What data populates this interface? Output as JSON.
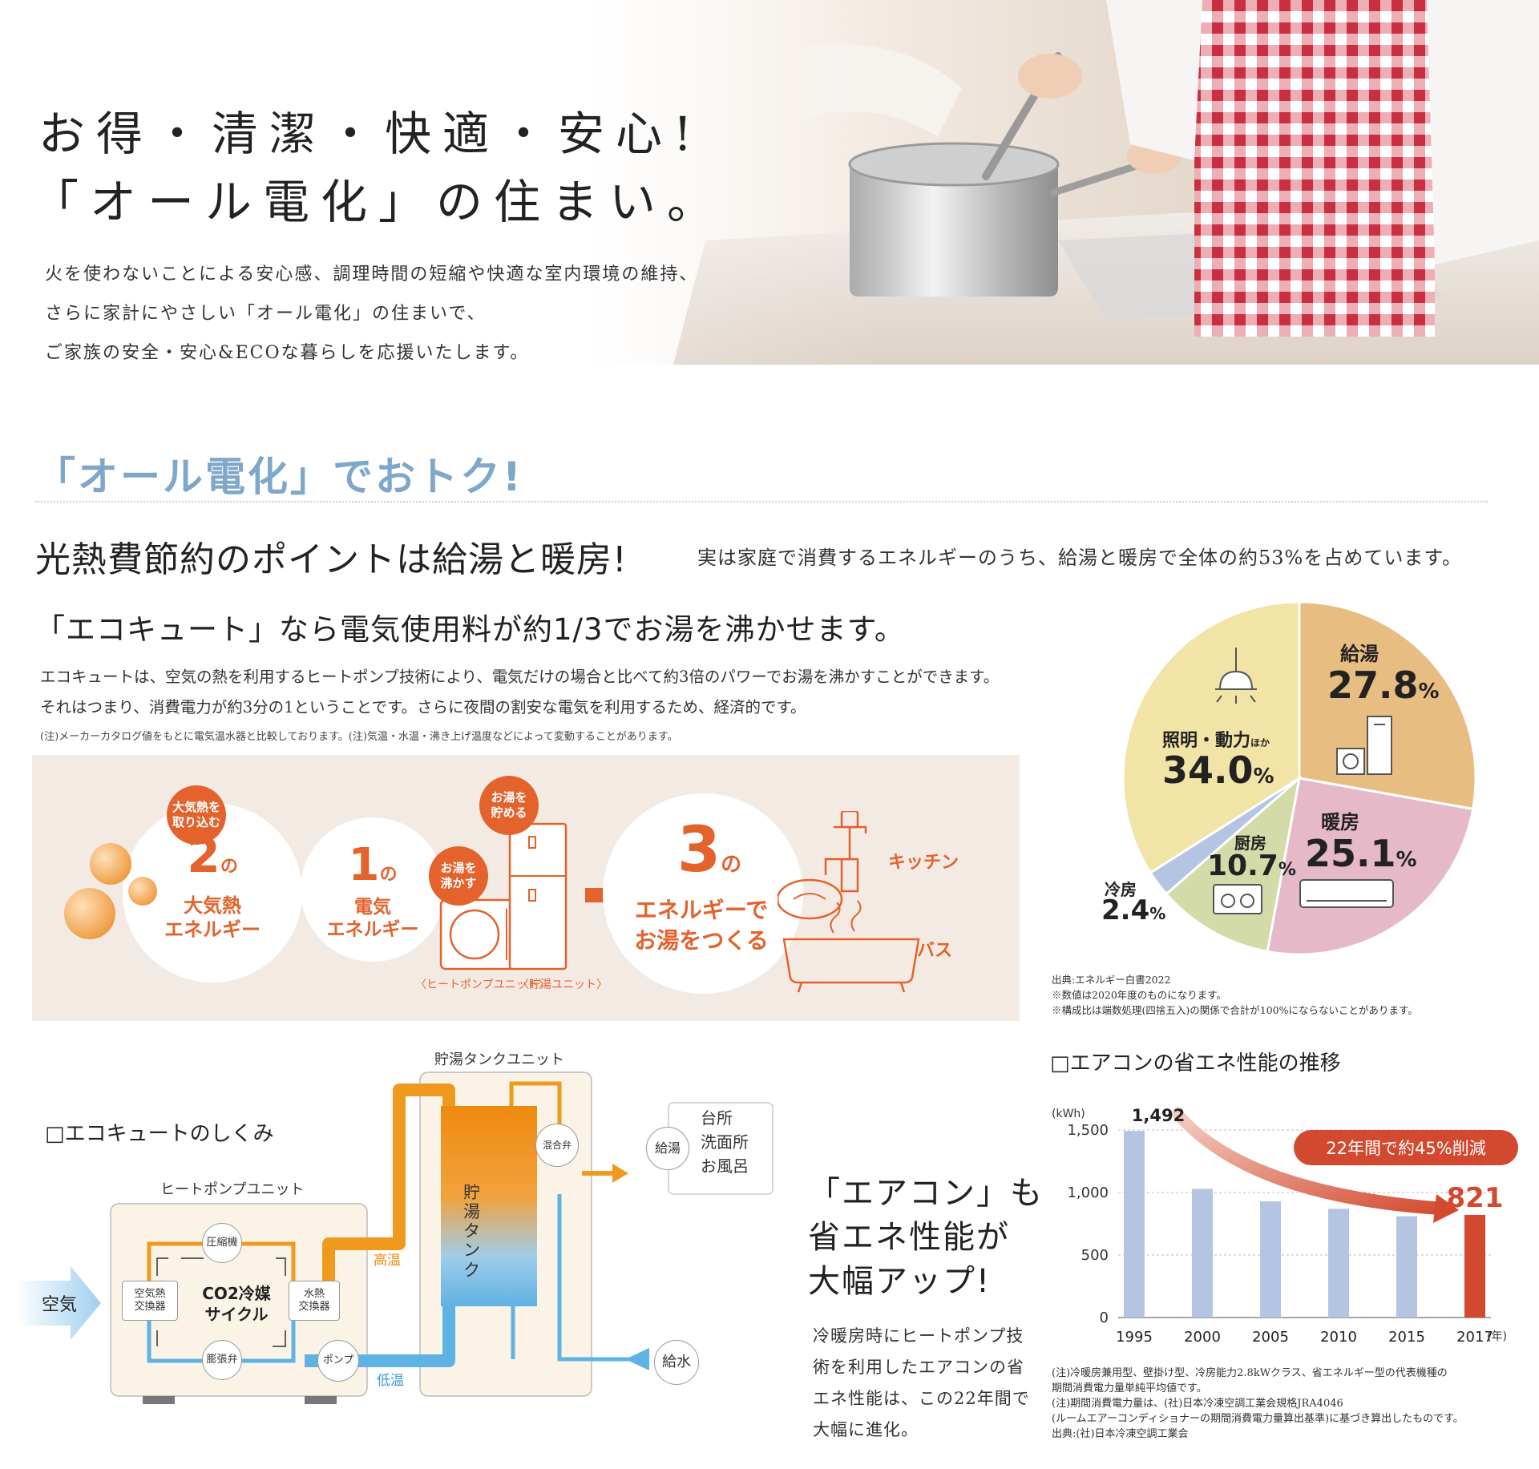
{
  "hero": {
    "title_line1": "お得・清潔・快適・安心!",
    "title_line2": "「オール電化」の住まい。",
    "desc": [
      "火を使わないことによる安心感、調理時間の短縮や快適な室内環境の維持、",
      "さらに家計にやさしい「オール電化」の住まいで、",
      "ご家族の安全・安心&ECOな暮らしを応援いたします。"
    ]
  },
  "section": {
    "title": "「オール電化」でおトク!",
    "headline": "光熱費節約のポイントは給湯と暖房!",
    "headline_sub": "実は家庭で消費するエネルギーのうち、給湯と暖房で全体の約53%を占めています。",
    "subheadline": "「エコキュート」なら電気使用料が約1/3でお湯を沸かせます。",
    "body": [
      "エコキュートは、空気の熱を利用するヒートポンプ技術により、電気だけの場合と比べて約3倍のパワーでお湯を沸かすことができます。",
      "それはつまり、消費電力が約3分の1ということです。さらに夜間の割安な電気を利用するため、経済的です。"
    ],
    "note": "(注)メーカーカタログ値をもとに電気温水器と比較しております。(注)気温・水温・沸き上げ温度などによって変動することがあります。"
  },
  "eco": {
    "badge_air": "大気熱を\n取り込む",
    "num_2": "2",
    "no": "の",
    "air_energy_1": "大気熱",
    "air_energy_2": "エネルギー",
    "plus": "+",
    "num_1": "1",
    "elec_energy_1": "電気",
    "elec_energy_2": "エネルギー",
    "badge_boil": "お湯を\n沸かす",
    "badge_store": "お湯を\n貯める",
    "unit_hp": "〈ヒートポンプユニット〉",
    "unit_tank": "〈貯湯ユニット〉",
    "num_3": "3",
    "make_1": "エネルギーで",
    "make_2": "お湯をつくる",
    "kitchen": "キッチン",
    "bath": "バス"
  },
  "pie": {
    "slices": [
      {
        "label": "給湯",
        "value": 27.8,
        "color": "#e8bd82"
      },
      {
        "label": "暖房",
        "value": 25.1,
        "color": "#e5b9c8"
      },
      {
        "label": "厨房",
        "value": 10.7,
        "color": "#d3dca8"
      },
      {
        "label": "冷房",
        "value": 2.4,
        "color": "#b3c5e2"
      },
      {
        "label": "照明・動力ほか",
        "value": 34.0,
        "color": "#f2e3a6"
      }
    ],
    "lbl_kyuto": "給湯",
    "val_kyuto": "27.8",
    "lbl_danbo": "暖房",
    "val_danbo": "25.1",
    "lbl_chubo": "厨房",
    "val_chubo": "10.7",
    "lbl_reibo": "冷房",
    "val_reibo": "2.4",
    "lbl_light": "照明・動力",
    "lbl_light_small": "ほか",
    "val_light": "34.0",
    "pct": "%",
    "source": [
      "出典:エネルギー白書2022",
      "※数値は2020年度のものになります。",
      "※構成比は端数処理(四捨五入)の関係で合計が100%にならないことがあります。"
    ]
  },
  "mechanism": {
    "title": "□エコキュートのしくみ",
    "hp_unit": "ヒートポンプユニット",
    "tank_unit": "貯湯タンクユニット",
    "compressor": "圧縮機",
    "air_hx": "空気熱\n交換器",
    "water_hx": "水熱\n交換器",
    "expansion": "膨張弁",
    "pump": "ポンプ",
    "cycle_1": "CO2冷媒",
    "cycle_2": "サイクル",
    "air": "空気",
    "high_temp": "高温",
    "low_temp": "低温",
    "tank": "貯湯タンク",
    "mix_valve": "混合弁",
    "supply_hot": "給湯",
    "destinations": "台所\n洗面所\nお風呂",
    "supply_water": "給水"
  },
  "aircon": {
    "title": [
      "「エアコン」も",
      "省エネ性能が",
      "大幅アップ!"
    ],
    "desc": [
      "冷暖房時にヒートポンプ技",
      "術を利用したエアコンの省",
      "エネ性能は、この22年間で",
      "大幅に進化。"
    ]
  },
  "chart_data": {
    "type": "bar",
    "title": "□エアコンの省エネ性能の推移",
    "categories": [
      "1995",
      "2000",
      "2005",
      "2010",
      "2015",
      "2017"
    ],
    "values": [
      1492,
      1030,
      930,
      870,
      810,
      821
    ],
    "ylim": [
      0,
      1500
    ],
    "yticks": [
      "0",
      "500",
      "1,000",
      "1,500"
    ],
    "y_unit": "(kWh)",
    "x_unit": "(年)",
    "label_first": "1,492",
    "label_last": "821",
    "callout": "22年間で約45%削減",
    "bar_color": "#b3c5e2",
    "highlight_color": "#d2492f",
    "notes": [
      "(注)冷暖房兼用型、壁掛け型、冷房能力2.8kWクラス、省エネルギー型の代表機種の",
      "期間消費電力量単純平均値です。",
      "(注)期間消費電力量は、(社)日本冷凍空調工業会規格JRA4046",
      "(ルームエアーコンディショナーの期間消費電力量算出基準)に基づき算出したものです。",
      "出典:(社)日本冷凍空調工業会"
    ]
  }
}
